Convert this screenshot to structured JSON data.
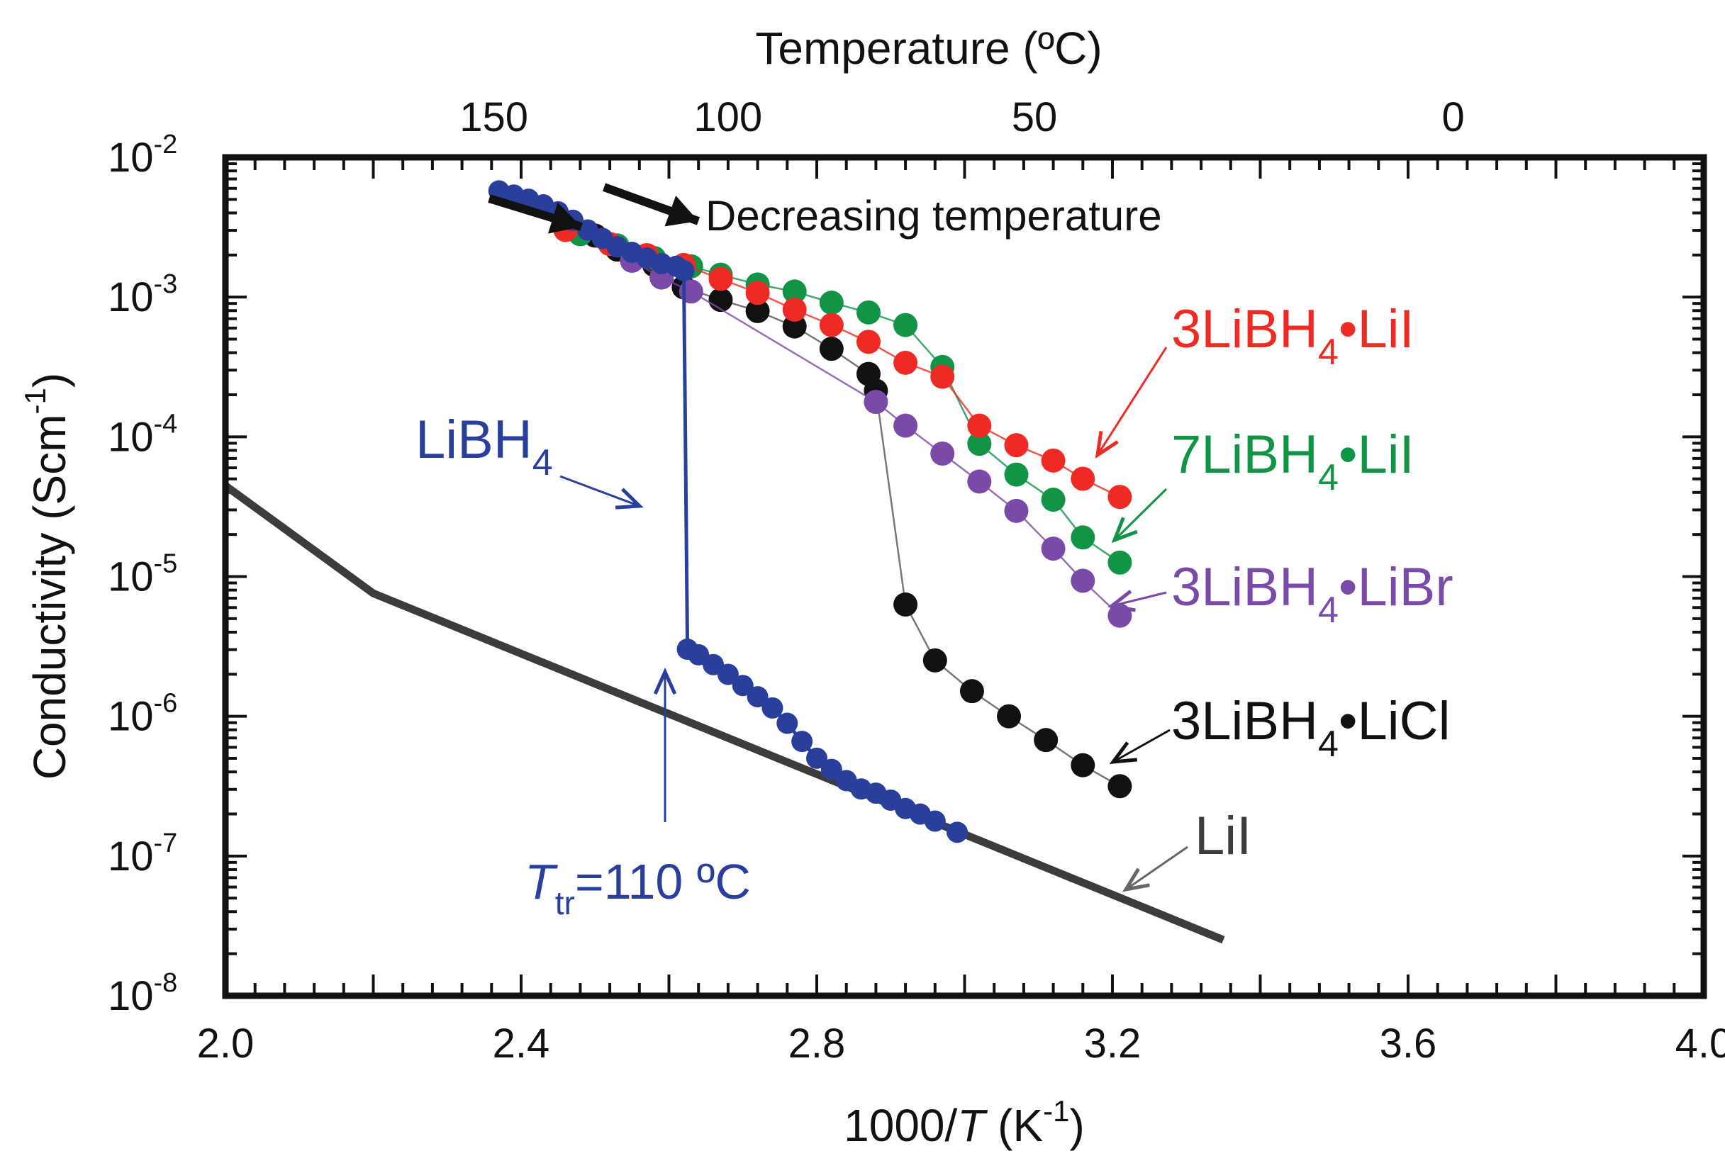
{
  "chart_data": {
    "type": "scatter",
    "xlabel_prefix": "1000/",
    "xlabel_italic": "T",
    "xlabel_unit": " (K",
    "xlabel_sup": "-1",
    "xlabel_end": ")",
    "ylabel_main": "Conductivity (Scm",
    "ylabel_sup": "-1",
    "ylabel_end": ")",
    "top_axis_title": "Temperature (ºC)",
    "xlim": [
      2.0,
      4.0
    ],
    "ylim_log10": [
      -8,
      -2
    ],
    "x_ticks": [
      {
        "value": 2.0,
        "label": "2.0"
      },
      {
        "value": 2.4,
        "label": "2.4"
      },
      {
        "value": 2.8,
        "label": "2.8"
      },
      {
        "value": 3.2,
        "label": "3.2"
      },
      {
        "value": 3.6,
        "label": "3.6"
      },
      {
        "value": 4.0,
        "label": "4.0"
      }
    ],
    "y_ticks": [
      {
        "exp": -2,
        "base": "10",
        "sup": "-2"
      },
      {
        "exp": -3,
        "base": "10",
        "sup": "-3"
      },
      {
        "exp": -4,
        "base": "10",
        "sup": "-4"
      },
      {
        "exp": -5,
        "base": "10",
        "sup": "-5"
      },
      {
        "exp": -6,
        "base": "10",
        "sup": "-6"
      },
      {
        "exp": -7,
        "base": "10",
        "sup": "-7"
      },
      {
        "exp": -8,
        "base": "10",
        "sup": "-8"
      }
    ],
    "top_ticks": [
      {
        "celsius": 150,
        "label": "150"
      },
      {
        "celsius": 100,
        "label": "100"
      },
      {
        "celsius": 50,
        "label": "50"
      },
      {
        "celsius": 0,
        "label": "0"
      }
    ],
    "series": [
      {
        "name": "LiI",
        "color": "#3c3c3c",
        "style": "thick-line",
        "points": [
          [
            2.0,
            -4.35
          ],
          [
            2.2,
            -5.12
          ],
          [
            3.35,
            -7.6
          ]
        ]
      },
      {
        "name": "3LiBH4·LiI",
        "color": "#ee2a24",
        "style": "markers",
        "points": [
          [
            2.46,
            -2.52
          ],
          [
            2.52,
            -2.62
          ],
          [
            2.57,
            -2.7
          ],
          [
            2.62,
            -2.77
          ],
          [
            2.67,
            -2.87
          ],
          [
            2.72,
            -2.97
          ],
          [
            2.77,
            -3.09
          ],
          [
            2.82,
            -3.2
          ],
          [
            2.87,
            -3.32
          ],
          [
            2.92,
            -3.47
          ],
          [
            2.97,
            -3.57
          ],
          [
            3.02,
            -3.92
          ],
          [
            3.07,
            -4.06
          ],
          [
            3.12,
            -4.17
          ],
          [
            3.16,
            -4.3
          ],
          [
            3.21,
            -4.43
          ]
        ]
      },
      {
        "name": "7LiBH4·LiI",
        "color": "#129447",
        "style": "markers",
        "points": [
          [
            2.48,
            -2.55
          ],
          [
            2.53,
            -2.63
          ],
          [
            2.58,
            -2.72
          ],
          [
            2.63,
            -2.78
          ],
          [
            2.67,
            -2.84
          ],
          [
            2.72,
            -2.91
          ],
          [
            2.77,
            -2.96
          ],
          [
            2.82,
            -3.04
          ],
          [
            2.87,
            -3.11
          ],
          [
            2.92,
            -3.2
          ],
          [
            2.97,
            -3.5
          ],
          [
            3.02,
            -4.05
          ],
          [
            3.07,
            -4.27
          ],
          [
            3.12,
            -4.45
          ],
          [
            3.16,
            -4.72
          ],
          [
            3.21,
            -4.9
          ]
        ]
      },
      {
        "name": "3LiBH4·LiBr",
        "color": "#7a4aa8",
        "style": "markers",
        "points": [
          [
            2.55,
            -2.74
          ],
          [
            2.59,
            -2.86
          ],
          [
            2.63,
            -2.96
          ],
          [
            2.88,
            -3.75
          ],
          [
            2.92,
            -3.92
          ],
          [
            2.97,
            -4.12
          ],
          [
            3.02,
            -4.32
          ],
          [
            3.07,
            -4.53
          ],
          [
            3.12,
            -4.8
          ],
          [
            3.16,
            -5.03
          ],
          [
            3.21,
            -5.28
          ]
        ]
      },
      {
        "name": "3LiBH4·LiCl",
        "color": "#111111",
        "style": "markers",
        "points": [
          [
            2.5,
            -2.56
          ],
          [
            2.53,
            -2.66
          ],
          [
            2.58,
            -2.77
          ],
          [
            2.62,
            -2.93
          ],
          [
            2.67,
            -3.02
          ],
          [
            2.72,
            -3.1
          ],
          [
            2.77,
            -3.21
          ],
          [
            2.82,
            -3.37
          ],
          [
            2.87,
            -3.55
          ],
          [
            2.88,
            -3.67
          ],
          [
            2.92,
            -5.2
          ],
          [
            2.96,
            -5.6
          ],
          [
            3.01,
            -5.82
          ],
          [
            3.06,
            -6.0
          ],
          [
            3.11,
            -6.17
          ],
          [
            3.16,
            -6.35
          ],
          [
            3.21,
            -6.5
          ]
        ]
      },
      {
        "name": "LiBH4",
        "color": "#2a3f9c",
        "style": "line-markers",
        "points": [
          [
            2.37,
            -2.24
          ],
          [
            2.39,
            -2.27
          ],
          [
            2.41,
            -2.3
          ],
          [
            2.43,
            -2.34
          ],
          [
            2.45,
            -2.39
          ],
          [
            2.47,
            -2.45
          ],
          [
            2.49,
            -2.52
          ],
          [
            2.51,
            -2.58
          ],
          [
            2.53,
            -2.64
          ],
          [
            2.55,
            -2.68
          ],
          [
            2.57,
            -2.72
          ],
          [
            2.59,
            -2.76
          ],
          [
            2.61,
            -2.78
          ],
          [
            2.62,
            -2.81
          ],
          [
            2.625,
            -5.52
          ],
          [
            2.64,
            -5.56
          ],
          [
            2.66,
            -5.63
          ],
          [
            2.68,
            -5.7
          ],
          [
            2.7,
            -5.78
          ],
          [
            2.72,
            -5.86
          ],
          [
            2.74,
            -5.94
          ],
          [
            2.76,
            -6.05
          ],
          [
            2.78,
            -6.18
          ],
          [
            2.8,
            -6.3
          ],
          [
            2.82,
            -6.38
          ],
          [
            2.84,
            -6.46
          ],
          [
            2.86,
            -6.52
          ],
          [
            2.88,
            -6.55
          ],
          [
            2.9,
            -6.6
          ],
          [
            2.92,
            -6.66
          ],
          [
            2.94,
            -6.7
          ],
          [
            2.96,
            -6.75
          ],
          [
            2.99,
            -6.83
          ]
        ]
      }
    ],
    "series_labels": [
      {
        "series": "3LiBH4·LiI",
        "main": "3LiBH",
        "sub": "4",
        "rest": "•LiI"
      },
      {
        "series": "7LiBH4·LiI",
        "main": "7LiBH",
        "sub": "4",
        "rest": "•LiI"
      },
      {
        "series": "3LiBH4·LiBr",
        "main": "3LiBH",
        "sub": "4",
        "rest": "•LiBr"
      },
      {
        "series": "3LiBH4·LiCl",
        "main": "3LiBH",
        "sub": "4",
        "rest": "•LiCl"
      },
      {
        "series": "LiBH4",
        "main": "LiBH",
        "sub": "4",
        "rest": ""
      },
      {
        "series": "LiI",
        "main": "LiI",
        "sub": "",
        "rest": ""
      }
    ],
    "annotations": {
      "decreasing_temperature": "Decreasing temperature",
      "transition_italic": "T",
      "transition_sub": "tr",
      "transition_rest": "=110 ºC"
    }
  }
}
